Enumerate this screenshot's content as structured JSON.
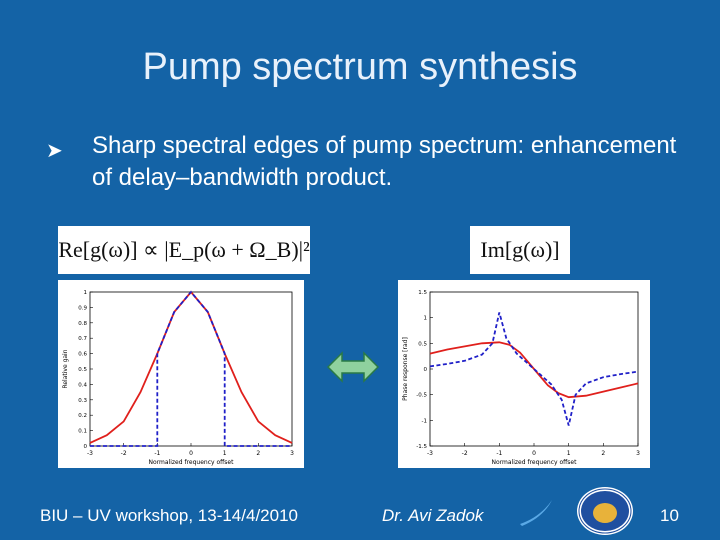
{
  "slide": {
    "title": "Pump spectrum synthesis",
    "bullet": "Sharp spectral edges of pump spectrum: enhancement of delay–bandwidth product."
  },
  "equations": {
    "left": "Re[g(ω)] ∝ |E_p(ω + Ω_B)|²",
    "right": "Im[g(ω)]"
  },
  "footer": {
    "left": "BIU – UV workshop, 13-14/4/2010",
    "center": "Dr. Avi Zadok",
    "page": "10"
  },
  "colors": {
    "background": "#1463a6",
    "red_curve": "#e0201c",
    "blue_curve": "#2020c8",
    "arrow_fill": "#8fd19e"
  },
  "chart_data": [
    {
      "type": "line",
      "xlabel": "Normalized frequency offset",
      "ylabel": "Relative gain",
      "xlim": [
        -3,
        3
      ],
      "ylim": [
        0,
        1
      ],
      "xticks": [
        "-3",
        "-2",
        "-1",
        "0",
        "1",
        "2",
        "3"
      ],
      "yticks": [
        "0",
        "0.1",
        "0.2",
        "0.3",
        "0.4",
        "0.5",
        "0.6",
        "0.7",
        "0.8",
        "0.9",
        "1"
      ],
      "series": [
        {
          "style": "solid",
          "color": "red",
          "x": [
            -3,
            -2.5,
            -2,
            -1.5,
            -1,
            -0.5,
            0,
            0.5,
            1,
            1.5,
            2,
            2.5,
            3
          ],
          "y": [
            0.02,
            0.07,
            0.16,
            0.35,
            0.6,
            0.87,
            1.0,
            0.87,
            0.6,
            0.35,
            0.16,
            0.07,
            0.02
          ]
        },
        {
          "style": "dashed",
          "color": "blue",
          "x": [
            -3,
            -1,
            -1,
            -0.5,
            0,
            0.5,
            1,
            1,
            3
          ],
          "y": [
            0,
            0,
            0.6,
            0.87,
            1.0,
            0.87,
            0.6,
            0,
            0
          ]
        }
      ]
    },
    {
      "type": "line",
      "xlabel": "Normalized frequency offset",
      "ylabel": "Phase response [rad]",
      "xlim": [
        -3,
        3
      ],
      "ylim": [
        -1.5,
        1.5
      ],
      "xticks": [
        "-3",
        "-2",
        "-1",
        "0",
        "1",
        "2",
        "3"
      ],
      "yticks": [
        "-1.5",
        "-1",
        "-0.5",
        "0",
        "0.5",
        "1",
        "1.5"
      ],
      "series": [
        {
          "style": "solid",
          "color": "red",
          "x": [
            -3,
            -2.5,
            -2,
            -1.5,
            -1,
            -0.7,
            -0.4,
            0,
            0.4,
            0.7,
            1,
            1.5,
            2,
            2.5,
            3
          ],
          "y": [
            0.3,
            0.38,
            0.44,
            0.5,
            0.52,
            0.47,
            0.32,
            0,
            -0.32,
            -0.47,
            -0.55,
            -0.52,
            -0.44,
            -0.36,
            -0.28
          ]
        },
        {
          "style": "dashed",
          "color": "blue",
          "x": [
            -3,
            -2.5,
            -2,
            -1.5,
            -1.2,
            -1,
            -0.8,
            -0.5,
            0,
            0.5,
            0.8,
            1,
            1.2,
            1.5,
            2,
            2.5,
            3
          ],
          "y": [
            0.05,
            0.1,
            0.16,
            0.28,
            0.5,
            1.1,
            0.6,
            0.3,
            0,
            -0.3,
            -0.6,
            -1.1,
            -0.5,
            -0.28,
            -0.16,
            -0.1,
            -0.05
          ]
        }
      ]
    }
  ]
}
